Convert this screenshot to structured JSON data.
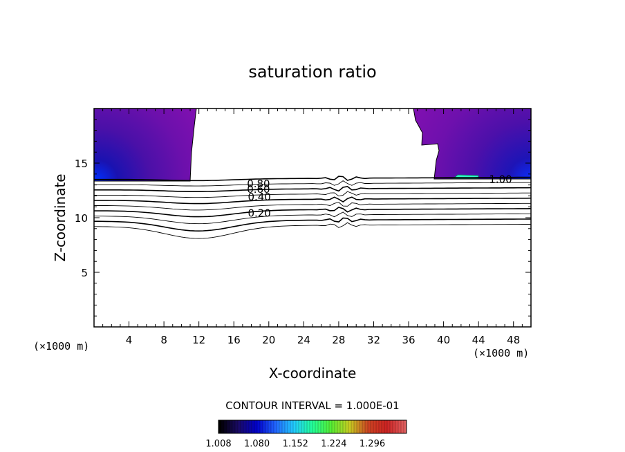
{
  "chart_data": {
    "type": "heatmap",
    "title": "saturation ratio",
    "xlabel": "X-coordinate",
    "ylabel": "Z-coordinate",
    "x_unit": "(×1000 m)",
    "y_unit": "(×1000 m)",
    "xlim": [
      0,
      50
    ],
    "ylim": [
      0,
      20
    ],
    "x_ticks": [
      "4",
      "8",
      "12",
      "16",
      "20",
      "24",
      "28",
      "32",
      "36",
      "40",
      "44",
      "48"
    ],
    "y_ticks": [
      "5",
      "10",
      "15"
    ],
    "contour_interval_text": "CONTOUR INTERVAL = 1.000E-01",
    "contour_levels": [
      0.1,
      0.2,
      0.3,
      0.4,
      0.5,
      0.6,
      0.7,
      0.8,
      0.9,
      1.0
    ],
    "contour_labels": [
      {
        "text": "0.80",
        "x": 17.5,
        "z": 13.1
      },
      {
        "text": "0.60",
        "x": 17.5,
        "z": 12.6
      },
      {
        "text": "0.40",
        "x": 17.6,
        "z": 11.9
      },
      {
        "text": "0.20",
        "x": 17.6,
        "z": 10.4
      },
      {
        "text": "1.00",
        "x": 45.2,
        "z": 13.5
      }
    ],
    "colorbar": {
      "min": 1.008,
      "max": 1.36,
      "tick_labels": [
        "1.008",
        "1.080",
        "1.152",
        "1.224",
        "1.296"
      ],
      "colormap": [
        "#000000",
        "#1a0a66",
        "#0000cc",
        "#2266ff",
        "#22ccff",
        "#22ff99",
        "#55ee33",
        "#c8cc22",
        "#cc4422",
        "#cc2222",
        "#e06060"
      ]
    }
  }
}
